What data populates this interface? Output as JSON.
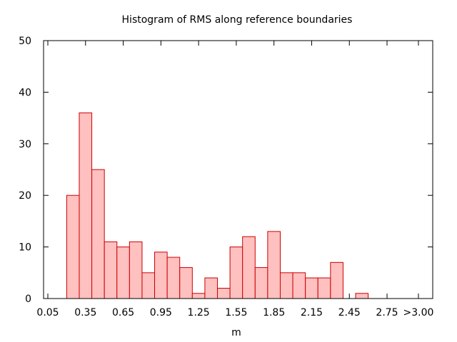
{
  "chart_data": {
    "type": "bar",
    "title": "Histogram of RMS along reference boundaries",
    "xlabel": "m",
    "ylabel": "",
    "xlim": [
      0.0,
      3.05
    ],
    "ylim": [
      0,
      50
    ],
    "grid": false,
    "x_tick_labels": [
      "0.05",
      "0.35",
      "0.65",
      "0.95",
      "1.25",
      "1.55",
      "1.85",
      "2.15",
      "2.45",
      "2.75",
      ">3.00"
    ],
    "x_tick_values": [
      0.05,
      0.35,
      0.65,
      0.95,
      1.25,
      1.55,
      1.85,
      2.15,
      2.45,
      2.75,
      3.0
    ],
    "y_tick_labels": [
      "0",
      "10",
      "20",
      "30",
      "40",
      "50"
    ],
    "y_tick_values": [
      0,
      10,
      20,
      30,
      40,
      50
    ],
    "bin_width": 0.1,
    "bin_centers": [
      0.25,
      0.35,
      0.45,
      0.55,
      0.65,
      0.75,
      0.85,
      0.95,
      1.05,
      1.15,
      1.25,
      1.35,
      1.45,
      1.55,
      1.65,
      1.75,
      1.85,
      1.95,
      2.05,
      2.15,
      2.25,
      2.35,
      2.45,
      2.55,
      2.65,
      2.75,
      2.85,
      2.95
    ],
    "values": [
      20,
      36,
      25,
      11,
      10,
      11,
      5,
      9,
      8,
      6,
      1,
      4,
      2,
      10,
      12,
      6,
      13,
      5,
      5,
      4,
      4,
      7,
      0,
      1,
      0,
      0,
      0,
      0
    ],
    "bar_fill": "#ffc0c0",
    "bar_stroke": "#cc0000"
  }
}
